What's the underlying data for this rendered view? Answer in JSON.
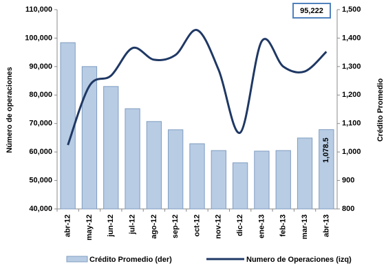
{
  "chart_data": {
    "type": "bar-line",
    "categories": [
      "abr-12",
      "may-12",
      "jun-12",
      "jul-12",
      "ago-12",
      "sep-12",
      "oct-12",
      "nov-12",
      "dic-12",
      "ene-13",
      "feb-13",
      "mar-13",
      "abr-13"
    ],
    "series": [
      {
        "name": "Crédito Promedio (der)",
        "type": "bar",
        "axis": "y2",
        "color": "#b8cce4",
        "values": [
          1384,
          1300,
          1230,
          1152,
          1107,
          1078,
          1029,
          1005,
          962,
          1003,
          1005,
          1049,
          1078.5
        ],
        "value_labels": [
          null,
          null,
          null,
          null,
          null,
          null,
          null,
          null,
          null,
          null,
          null,
          null,
          "1,078.5"
        ]
      },
      {
        "name": "Numero de Operaciones (izq)",
        "type": "line",
        "axis": "y",
        "color": "#1f3864",
        "values": [
          62450,
          83200,
          86800,
          96500,
          92400,
          94100,
          102800,
          88800,
          66800,
          98900,
          90000,
          88300,
          95222
        ],
        "value_labels": [
          null,
          null,
          null,
          null,
          null,
          null,
          null,
          null,
          null,
          null,
          null,
          null,
          "95,222"
        ]
      }
    ],
    "ylabel": "Número de operaciones",
    "y2label": "Crédito Promedio",
    "ylim": [
      40000,
      110000
    ],
    "yticks": [
      {
        "value": 40000,
        "label": "40,000"
      },
      {
        "value": 50000,
        "label": "50,000"
      },
      {
        "value": 60000,
        "label": "60,000"
      },
      {
        "value": 70000,
        "label": "70,000"
      },
      {
        "value": 80000,
        "label": "80,000"
      },
      {
        "value": 90000,
        "label": "90,000"
      },
      {
        "value": 100000,
        "label": "100,000"
      },
      {
        "value": 110000,
        "label": "110,000"
      }
    ],
    "y2lim": [
      800,
      1500
    ],
    "y2ticks": [
      800,
      900,
      {
        "value": 1000,
        "label": "1,000"
      },
      {
        "value": 1100,
        "label": "1,100"
      },
      {
        "value": 1200,
        "label": "1,200"
      },
      {
        "value": 1300,
        "label": "1,300"
      },
      {
        "value": 1400,
        "label": "1,400"
      },
      {
        "value": 1500,
        "label": "1,500"
      }
    ],
    "grid": false
  }
}
